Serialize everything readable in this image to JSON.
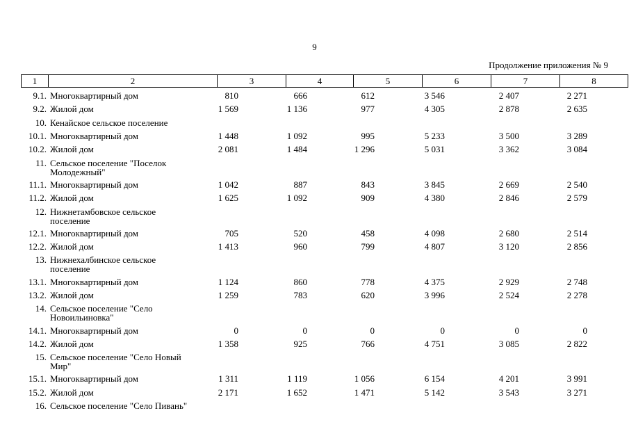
{
  "page_number": "9",
  "continuation": "Продолжение приложения № 9",
  "header": [
    "1",
    "2",
    "3",
    "4",
    "5",
    "6",
    "7",
    "8"
  ],
  "rows": [
    {
      "num": "9.1.",
      "name": "Многоквартирный дом",
      "values": [
        "810",
        "666",
        "612",
        "3 546",
        "2 407",
        "2 271"
      ]
    },
    {
      "num": "9.2.",
      "name": "Жилой дом",
      "values": [
        "1 569",
        "1 136",
        "977",
        "4 305",
        "2 878",
        "2 635"
      ]
    },
    {
      "num": "10.",
      "name": "Кенайское сельское поселение",
      "values": []
    },
    {
      "num": "10.1.",
      "name": "Многоквартирный дом",
      "values": [
        "1 448",
        "1 092",
        "995",
        "5 233",
        "3 500",
        "3 289"
      ]
    },
    {
      "num": "10.2.",
      "name": "Жилой дом",
      "values": [
        "2 081",
        "1 484",
        "1 296",
        "5 031",
        "3 362",
        "3 084"
      ]
    },
    {
      "num": "11.",
      "name": "Сельское поселение \"Поселок Молодежный\"",
      "values": []
    },
    {
      "num": "11.1.",
      "name": "Многоквартирный дом",
      "values": [
        "1 042",
        "887",
        "843",
        "3 845",
        "2 669",
        "2 540"
      ]
    },
    {
      "num": "11.2.",
      "name": "Жилой дом",
      "values": [
        "1 625",
        "1 092",
        "909",
        "4 380",
        "2 846",
        "2 579"
      ]
    },
    {
      "num": "12.",
      "name": "Нижнетамбовское сельское поселение",
      "values": []
    },
    {
      "num": "12.1.",
      "name": "Многоквартирный дом",
      "values": [
        "705",
        "520",
        "458",
        "4 098",
        "2 680",
        "2 514"
      ]
    },
    {
      "num": "12.2.",
      "name": "Жилой дом",
      "values": [
        "1 413",
        "960",
        "799",
        "4 807",
        "3 120",
        "2 856"
      ]
    },
    {
      "num": "13.",
      "name": "Нижнехалбинское сельское поселение",
      "values": []
    },
    {
      "num": "13.1.",
      "name": "Многоквартирный дом",
      "values": [
        "1 124",
        "860",
        "778",
        "4 375",
        "2 929",
        "2 748"
      ]
    },
    {
      "num": "13.2.",
      "name": "Жилой дом",
      "values": [
        "1 259",
        "783",
        "620",
        "3 996",
        "2 524",
        "2 278"
      ]
    },
    {
      "num": "14.",
      "name": "Сельское поселение \"Село Новоильиновка\"",
      "values": []
    },
    {
      "num": "14.1.",
      "name": "Многоквартирный дом",
      "values": [
        "0",
        "0",
        "0",
        "0",
        "0",
        "0"
      ]
    },
    {
      "num": "14.2.",
      "name": "Жилой дом",
      "values": [
        "1 358",
        "925",
        "766",
        "4 751",
        "3 085",
        "2 822"
      ]
    },
    {
      "num": "15.",
      "name": "Сельское поселение \"Село Новый Мир\"",
      "values": []
    },
    {
      "num": "15.1.",
      "name": "Многоквартирный дом",
      "values": [
        "1 311",
        "1 119",
        "1 056",
        "6 154",
        "4 201",
        "3 991"
      ]
    },
    {
      "num": "15.2.",
      "name": "Жилой дом",
      "values": [
        "2 171",
        "1 652",
        "1 471",
        "5 142",
        "3 543",
        "3 271"
      ]
    },
    {
      "num": "16.",
      "name": "Сельское поселение \"Село Пивань\"",
      "values": []
    }
  ]
}
